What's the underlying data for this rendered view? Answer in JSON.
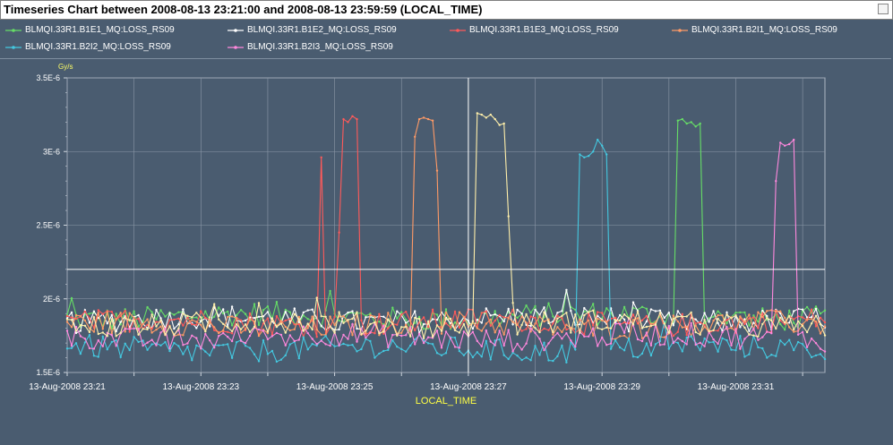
{
  "window": {
    "title": "Timeseries Chart between 2008-08-13 23:21:00 and 2008-08-13 23:59:59 (LOCAL_TIME)"
  },
  "colors": {
    "background": "#4a5c70",
    "grid": "#8c98a8",
    "axis_text": "#ffffff",
    "unit_text": "#ffff66",
    "xlabel_text": "#ffff44",
    "crosshair": "#ffffff"
  },
  "chart_data": {
    "type": "line",
    "title": "",
    "xlabel": "LOCAL_TIME",
    "yunit": "Gy/s",
    "ylim": [
      1.5e-06,
      3.5e-06
    ],
    "xlim": [
      "2008-08-13 23:21:00",
      "2008-08-13 23:32:20"
    ],
    "yticks": [
      "1.5E-6",
      "2E-6",
      "2.5E-6",
      "3E-6",
      "3.5E-6"
    ],
    "xticks": [
      "13-Aug-2008 23:21",
      "13-Aug-2008 23:23",
      "13-Aug-2008 23:25",
      "13-Aug-2008 23:27",
      "13-Aug-2008 23:29",
      "13-Aug-2008 23:31"
    ],
    "crosshair": {
      "x": "2008-08-13 23:27:00",
      "y": 2.2e-06
    },
    "grid": true,
    "series": [
      {
        "name": "BLMQI.33R1.B1E1_MQ:LOSS_RS09",
        "color": "#66dd66",
        "baseline": 1.88e-06,
        "peaks": [
          {
            "start": "23:30:05",
            "end": "23:30:30",
            "values": [
              2.53e-06,
              3.21e-06,
              3.22e-06,
              3.2e-06,
              3.19e-06,
              3.2e-06,
              3.17e-06,
              3.19e-06,
              2.85e-06
            ]
          }
        ]
      },
      {
        "name": "BLMQI.33R1.B1E2_MQ:LOSS_RS09",
        "color": "#ffffff",
        "baseline": 1.86e-06,
        "peaks": []
      },
      {
        "name": "BLMQI.33R1.B1E3_MQ:LOSS_RS09",
        "color": "#ff5a5a",
        "baseline": 1.84e-06,
        "peaks": [
          {
            "start": "23:24:45",
            "end": "23:24:50",
            "values": [
              2.8e-06,
              2.96e-06
            ]
          },
          {
            "start": "23:25:03",
            "end": "23:25:23",
            "values": [
              2.45e-06,
              3.25e-06,
              3.22e-06,
              3.23e-06,
              3.2e-06,
              3.21e-06,
              3.24e-06,
              3.2e-06,
              3.22e-06,
              2.98e-06
            ]
          }
        ]
      },
      {
        "name": "BLMQI.33R1.B2I1_MQ:LOSS_RS09",
        "color": "#ff9a66",
        "baseline": 1.82e-06,
        "peaks": [
          {
            "start": "23:26:09",
            "end": "23:26:33",
            "values": [
              2.7e-06,
              3.1e-06,
              3.22e-06,
              3.2e-06,
              3.23e-06,
              3.22e-06,
              3.21e-06,
              3.22e-06,
              2.87e-06
            ]
          }
        ]
      },
      {
        "name": "BLMQI.33R1.B2I2_MQ:LOSS_RS09",
        "color": "#44c8e0",
        "baseline": 1.66e-06,
        "peaks": [
          {
            "start": "23:28:38",
            "end": "23:29:07",
            "values": [
              2.86e-06,
              2.98e-06,
              2.96e-06,
              2.97e-06,
              3e-06,
              3.06e-06,
              3.08e-06,
              3.04e-06,
              2.98e-06,
              3.02e-06
            ]
          }
        ]
      },
      {
        "name": "BLMQI.33R1.B2I3_MQ:LOSS_RS09",
        "color": "#ff88dd",
        "baseline": 1.74e-06,
        "peaks": [
          {
            "start": "23:31:36",
            "end": "23:31:54",
            "values": [
              2.8e-06,
              3.06e-06,
              3.05e-06,
              3.04e-06,
              3.05e-06,
              3.08e-06,
              2.36e-06
            ]
          }
        ]
      },
      {
        "name": "",
        "color": "#ffefaa",
        "baseline": 1.83e-06,
        "peaks": [
          {
            "start": "23:27:05",
            "end": "23:27:39",
            "values": [
              2.43e-06,
              3.26e-06,
              3.25e-06,
              3.23e-06,
              3.25e-06,
              3.22e-06,
              3.18e-06,
              3.19e-06,
              2.56e-06,
              2.06e-06
            ]
          }
        ]
      }
    ]
  }
}
